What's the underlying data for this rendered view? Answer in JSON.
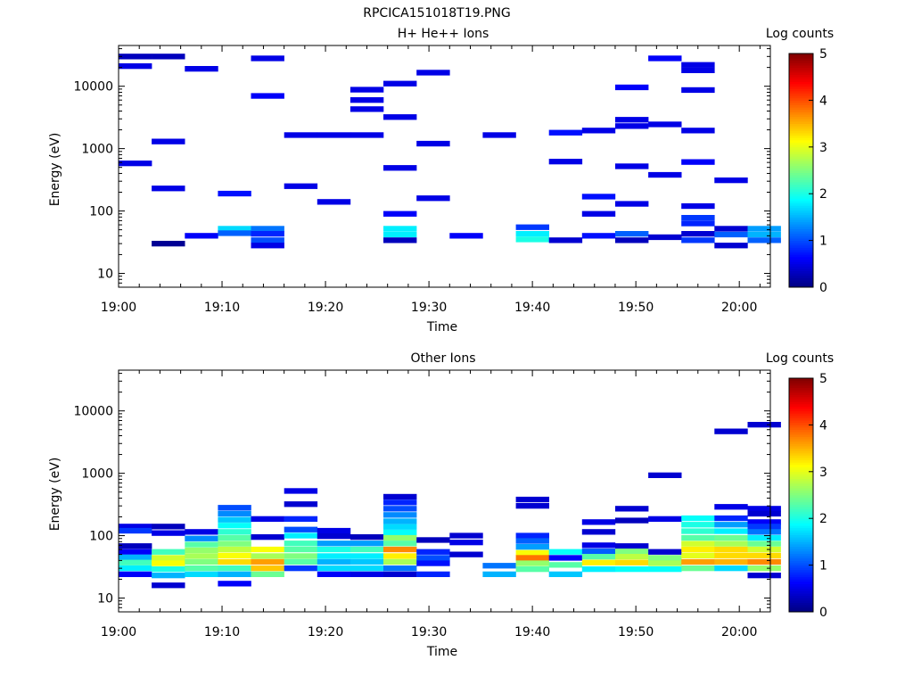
{
  "title": "RPCICA151018T19.PNG",
  "colorbar": {
    "label": "Log counts",
    "ticks": [
      "0",
      "1",
      "2",
      "3",
      "4",
      "5"
    ],
    "min": 0,
    "max": 5
  },
  "chart_data": [
    {
      "type": "heatmap",
      "title": "H+ He++ Ions",
      "xlabel": "Time",
      "ylabel": "Energy (eV)",
      "xlim": [
        "19:00",
        "20:03"
      ],
      "ylim": [
        6,
        45000
      ],
      "yscale": "log",
      "xticks": [
        "19:00",
        "19:10",
        "19:20",
        "19:30",
        "19:40",
        "19:50",
        "20:00"
      ],
      "yticks": [
        "10",
        "100",
        "1000",
        "10000"
      ],
      "time_step_min": 3.2,
      "cells": [
        [
          0,
          30000,
          0.3
        ],
        [
          0,
          21000,
          0.5
        ],
        [
          0,
          580,
          0.5
        ],
        [
          1,
          30000,
          0.3
        ],
        [
          1,
          1300,
          0.5
        ],
        [
          1,
          230,
          0.5
        ],
        [
          1,
          30,
          0.1
        ],
        [
          2,
          19000,
          0.5
        ],
        [
          2,
          40,
          0.6
        ],
        [
          3,
          190,
          0.7
        ],
        [
          3,
          52,
          1.7
        ],
        [
          3,
          44,
          1.1
        ],
        [
          4,
          28000,
          0.5
        ],
        [
          4,
          7000,
          0.6
        ],
        [
          4,
          52,
          1.2
        ],
        [
          4,
          43,
          0.8
        ],
        [
          4,
          34,
          1.0
        ],
        [
          4,
          28,
          0.5
        ],
        [
          5,
          1650,
          0.5
        ],
        [
          5,
          250,
          0.5
        ],
        [
          6,
          1650,
          0.5
        ],
        [
          6,
          140,
          0.5
        ],
        [
          7,
          8800,
          0.5
        ],
        [
          7,
          6000,
          0.5
        ],
        [
          7,
          4300,
          0.5
        ],
        [
          7,
          1650,
          0.5
        ],
        [
          8,
          11000,
          0.5
        ],
        [
          8,
          3200,
          0.5
        ],
        [
          8,
          490,
          0.5
        ],
        [
          8,
          90,
          0.6
        ],
        [
          8,
          52,
          1.8
        ],
        [
          8,
          42,
          1.8
        ],
        [
          8,
          34,
          0.3
        ],
        [
          9,
          16500,
          0.5
        ],
        [
          9,
          1200,
          0.5
        ],
        [
          9,
          160,
          0.5
        ],
        [
          10,
          40,
          0.6
        ],
        [
          11,
          1650,
          0.5
        ],
        [
          12,
          55,
          0.9
        ],
        [
          12,
          43,
          1.8
        ],
        [
          12,
          35,
          2.0
        ],
        [
          13,
          1800,
          0.7
        ],
        [
          13,
          620,
          0.5
        ],
        [
          13,
          34,
          0.4
        ],
        [
          14,
          1950,
          0.5
        ],
        [
          14,
          170,
          0.7
        ],
        [
          14,
          90,
          0.5
        ],
        [
          14,
          40,
          0.7
        ],
        [
          15,
          9600,
          0.6
        ],
        [
          15,
          2900,
          0.5
        ],
        [
          15,
          2300,
          0.5
        ],
        [
          15,
          520,
          0.5
        ],
        [
          15,
          130,
          0.5
        ],
        [
          15,
          43,
          1.1
        ],
        [
          15,
          34,
          0.3
        ],
        [
          16,
          28000,
          0.6
        ],
        [
          16,
          2450,
          0.5
        ],
        [
          16,
          380,
          0.5
        ],
        [
          16,
          38,
          0.4
        ],
        [
          17,
          22000,
          0.5
        ],
        [
          17,
          18000,
          0.5
        ],
        [
          17,
          8700,
          0.5
        ],
        [
          17,
          1950,
          0.5
        ],
        [
          17,
          610,
          0.6
        ],
        [
          17,
          120,
          0.5
        ],
        [
          17,
          78,
          0.9
        ],
        [
          17,
          63,
          0.8
        ],
        [
          17,
          43,
          0.4
        ],
        [
          17,
          34,
          0.9
        ],
        [
          18,
          310,
          0.5
        ],
        [
          18,
          52,
          0.4
        ],
        [
          18,
          42,
          1.1
        ],
        [
          18,
          28,
          0.4
        ],
        [
          19,
          52,
          1.4
        ],
        [
          19,
          42,
          1.5
        ],
        [
          19,
          34,
          1.1
        ]
      ]
    },
    {
      "type": "heatmap",
      "title": "Other Ions",
      "xlabel": "Time",
      "ylabel": "Energy (eV)",
      "xlim": [
        "19:00",
        "20:03"
      ],
      "ylim": [
        6,
        45000
      ],
      "yscale": "log",
      "xticks": [
        "19:00",
        "19:10",
        "19:20",
        "19:30",
        "19:40",
        "19:50",
        "20:00"
      ],
      "yticks": [
        "10",
        "100",
        "1000",
        "10000"
      ],
      "time_step_min": 3.2,
      "cells": [
        [
          0,
          140,
          0.5
        ],
        [
          0,
          120,
          0.9
        ],
        [
          0,
          68,
          0.3
        ],
        [
          0,
          55,
          0.6
        ],
        [
          0,
          45,
          1.5
        ],
        [
          0,
          37,
          2.2
        ],
        [
          0,
          30,
          1.8
        ],
        [
          0,
          24,
          0.6
        ],
        [
          1,
          140,
          0.3
        ],
        [
          1,
          110,
          0.5
        ],
        [
          1,
          55,
          2.2
        ],
        [
          1,
          44,
          2.9
        ],
        [
          1,
          36,
          3.1
        ],
        [
          1,
          29,
          2.0
        ],
        [
          1,
          23,
          1.5
        ],
        [
          1,
          16,
          0.4
        ],
        [
          2,
          115,
          0.5
        ],
        [
          2,
          90,
          1.3
        ],
        [
          2,
          72,
          2.3
        ],
        [
          2,
          58,
          2.6
        ],
        [
          2,
          47,
          2.7
        ],
        [
          2,
          38,
          2.5
        ],
        [
          2,
          30,
          2.3
        ],
        [
          2,
          24,
          1.7
        ],
        [
          3,
          280,
          1.0
        ],
        [
          3,
          225,
          1.3
        ],
        [
          3,
          180,
          1.6
        ],
        [
          3,
          145,
          1.9
        ],
        [
          3,
          115,
          2.1
        ],
        [
          3,
          92,
          2.3
        ],
        [
          3,
          74,
          2.5
        ],
        [
          3,
          60,
          2.8
        ],
        [
          3,
          48,
          3.1
        ],
        [
          3,
          38,
          3.3
        ],
        [
          3,
          30,
          2.2
        ],
        [
          3,
          24,
          1.5
        ],
        [
          3,
          17,
          0.6
        ],
        [
          4,
          185,
          0.5
        ],
        [
          4,
          95,
          0.4
        ],
        [
          4,
          60,
          3.1
        ],
        [
          4,
          47,
          2.7
        ],
        [
          4,
          38,
          3.6
        ],
        [
          4,
          30,
          3.4
        ],
        [
          4,
          24,
          2.4
        ],
        [
          5,
          520,
          0.5
        ],
        [
          5,
          320,
          0.4
        ],
        [
          5,
          185,
          0.8
        ],
        [
          5,
          125,
          1.0
        ],
        [
          5,
          100,
          1.8
        ],
        [
          5,
          75,
          2.2
        ],
        [
          5,
          60,
          2.3
        ],
        [
          5,
          47,
          2.5
        ],
        [
          5,
          38,
          2.3
        ],
        [
          5,
          30,
          0.9
        ],
        [
          6,
          120,
          0.5
        ],
        [
          6,
          98,
          0.4
        ],
        [
          6,
          75,
          1.4
        ],
        [
          6,
          60,
          2.0
        ],
        [
          6,
          47,
          1.8
        ],
        [
          6,
          38,
          1.5
        ],
        [
          6,
          30,
          1.7
        ],
        [
          6,
          24,
          0.6
        ],
        [
          7,
          95,
          0.3
        ],
        [
          7,
          75,
          1.4
        ],
        [
          7,
          60,
          2.2
        ],
        [
          7,
          47,
          1.8
        ],
        [
          7,
          38,
          1.6
        ],
        [
          7,
          30,
          1.7
        ],
        [
          7,
          24,
          0.5
        ],
        [
          8,
          420,
          0.4
        ],
        [
          8,
          340,
          0.8
        ],
        [
          8,
          270,
          1.0
        ],
        [
          8,
          215,
          1.3
        ],
        [
          8,
          170,
          1.5
        ],
        [
          8,
          138,
          1.7
        ],
        [
          8,
          112,
          1.9
        ],
        [
          8,
          92,
          2.6
        ],
        [
          8,
          75,
          2.3
        ],
        [
          8,
          60,
          3.7
        ],
        [
          8,
          47,
          3.2
        ],
        [
          8,
          38,
          2.7
        ],
        [
          8,
          30,
          1.2
        ],
        [
          8,
          24,
          0.4
        ],
        [
          9,
          85,
          0.3
        ],
        [
          9,
          55,
          0.8
        ],
        [
          9,
          44,
          1.0
        ],
        [
          9,
          36,
          0.7
        ],
        [
          9,
          24,
          0.8
        ],
        [
          10,
          100,
          0.4
        ],
        [
          10,
          78,
          0.5
        ],
        [
          10,
          50,
          0.4
        ],
        [
          11,
          33,
          1.2
        ],
        [
          11,
          24,
          1.5
        ],
        [
          12,
          380,
          0.4
        ],
        [
          12,
          300,
          0.4
        ],
        [
          12,
          100,
          0.8
        ],
        [
          12,
          82,
          1.1
        ],
        [
          12,
          66,
          1.4
        ],
        [
          12,
          53,
          3.1
        ],
        [
          12,
          44,
          3.8
        ],
        [
          12,
          36,
          2.6
        ],
        [
          12,
          29,
          2.3
        ],
        [
          13,
          55,
          1.9
        ],
        [
          13,
          44,
          0.6
        ],
        [
          13,
          34,
          2.3
        ],
        [
          13,
          24,
          1.6
        ],
        [
          14,
          165,
          0.5
        ],
        [
          14,
          115,
          0.4
        ],
        [
          14,
          70,
          0.5
        ],
        [
          14,
          56,
          1.1
        ],
        [
          14,
          46,
          2.3
        ],
        [
          14,
          37,
          3.2
        ],
        [
          14,
          29,
          1.8
        ],
        [
          15,
          270,
          0.4
        ],
        [
          15,
          175,
          0.3
        ],
        [
          15,
          68,
          0.4
        ],
        [
          15,
          56,
          2.5
        ],
        [
          15,
          46,
          2.8
        ],
        [
          15,
          37,
          3.3
        ],
        [
          15,
          29,
          1.9
        ],
        [
          16,
          930,
          0.4
        ],
        [
          16,
          185,
          0.5
        ],
        [
          16,
          55,
          0.4
        ],
        [
          16,
          44,
          2.5
        ],
        [
          16,
          36,
          2.7
        ],
        [
          16,
          29,
          1.9
        ],
        [
          17,
          190,
          1.9
        ],
        [
          17,
          150,
          2.0
        ],
        [
          17,
          118,
          2.1
        ],
        [
          17,
          92,
          2.3
        ],
        [
          17,
          74,
          2.9
        ],
        [
          17,
          60,
          3.2
        ],
        [
          17,
          48,
          3.0
        ],
        [
          17,
          38,
          3.6
        ],
        [
          17,
          30,
          2.4
        ],
        [
          18,
          4700,
          0.4
        ],
        [
          18,
          290,
          0.5
        ],
        [
          18,
          190,
          0.8
        ],
        [
          18,
          150,
          1.4
        ],
        [
          18,
          118,
          1.8
        ],
        [
          18,
          92,
          2.4
        ],
        [
          18,
          74,
          2.7
        ],
        [
          18,
          60,
          3.3
        ],
        [
          18,
          48,
          3.3
        ],
        [
          18,
          38,
          3.5
        ],
        [
          18,
          30,
          1.7
        ],
        [
          19,
          6000,
          0.4
        ],
        [
          19,
          270,
          0.5
        ],
        [
          19,
          225,
          0.4
        ],
        [
          19,
          165,
          0.6
        ],
        [
          19,
          140,
          0.9
        ],
        [
          19,
          115,
          1.2
        ],
        [
          19,
          92,
          1.8
        ],
        [
          19,
          74,
          2.4
        ],
        [
          19,
          60,
          2.9
        ],
        [
          19,
          48,
          3.3
        ],
        [
          19,
          38,
          3.7
        ],
        [
          19,
          30,
          2.6
        ],
        [
          19,
          23,
          0.4
        ]
      ]
    }
  ]
}
